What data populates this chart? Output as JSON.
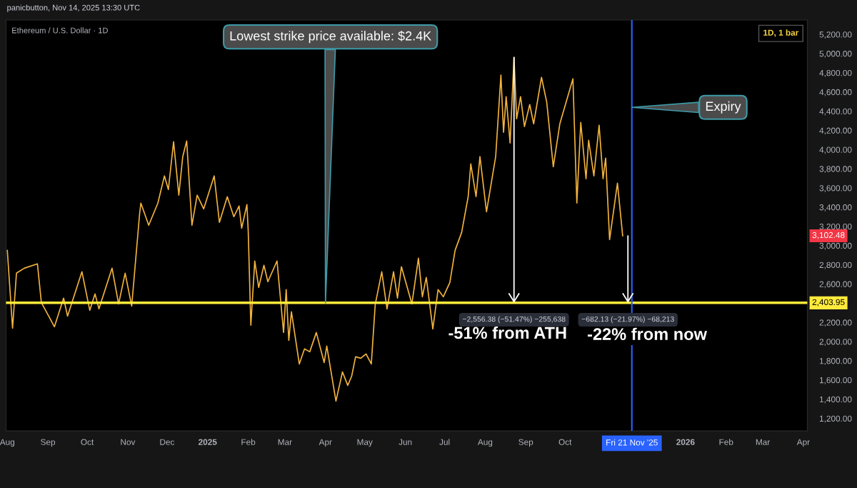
{
  "chart_data": {
    "type": "line",
    "title": "Ethereum / U.S. Dollar · 1D",
    "subtitle": "panicbutton, Nov 14, 2025 13:30 UTC",
    "x": [
      "2024-08-01",
      "2024-08-05",
      "2024-08-08",
      "2024-08-14",
      "2024-08-24",
      "2024-08-27",
      "2024-09-06",
      "2024-09-13",
      "2024-09-16",
      "2024-09-27",
      "2024-10-03",
      "2024-10-07",
      "2024-10-10",
      "2024-10-20",
      "2024-10-25",
      "2024-10-30",
      "2024-11-04",
      "2024-11-10",
      "2024-11-11",
      "2024-11-17",
      "2024-11-24",
      "2024-11-29",
      "2024-12-02",
      "2024-12-06",
      "2024-12-10",
      "2024-12-13",
      "2024-12-16",
      "2024-12-20",
      "2024-12-24",
      "2024-12-29",
      "2025-01-06",
      "2025-01-10",
      "2025-01-16",
      "2025-01-21",
      "2025-01-25",
      "2025-01-27",
      "2025-01-31",
      "2025-02-01",
      "2025-02-03",
      "2025-02-06",
      "2025-02-09",
      "2025-02-13",
      "2025-02-16",
      "2025-02-23",
      "2025-02-28",
      "2025-03-02",
      "2025-03-04",
      "2025-03-06",
      "2025-03-12",
      "2025-03-16",
      "2025-03-20",
      "2025-03-25",
      "2025-03-31",
      "2025-04-02",
      "2025-04-09",
      "2025-04-14",
      "2025-04-18",
      "2025-04-21",
      "2025-04-24",
      "2025-04-28",
      "2025-05-02",
      "2025-05-06",
      "2025-05-09",
      "2025-05-14",
      "2025-05-18",
      "2025-05-23",
      "2025-05-26",
      "2025-05-29",
      "2025-06-06",
      "2025-06-11",
      "2025-06-14",
      "2025-06-17",
      "2025-06-22",
      "2025-06-26",
      "2025-06-30",
      "2025-07-05",
      "2025-07-09",
      "2025-07-14",
      "2025-07-19",
      "2025-07-21",
      "2025-07-25",
      "2025-07-28",
      "2025-07-30",
      "2025-08-02",
      "2025-08-09",
      "2025-08-13",
      "2025-08-15",
      "2025-08-17",
      "2025-08-20",
      "2025-08-23",
      "2025-08-25",
      "2025-08-28",
      "2025-08-31",
      "2025-09-04",
      "2025-09-07",
      "2025-09-13",
      "2025-09-17",
      "2025-09-22",
      "2025-09-27",
      "2025-10-07",
      "2025-10-10",
      "2025-10-13",
      "2025-10-17",
      "2025-10-19",
      "2025-10-23",
      "2025-10-27",
      "2025-10-30",
      "2025-11-01",
      "2025-11-04",
      "2025-11-10",
      "2025-11-14"
    ],
    "series": [
      {
        "color": "#f2b33d",
        "values": [
          2950,
          2140,
          2713,
          2765,
          2810,
          2408,
          2155,
          2453,
          2266,
          2728,
          2326,
          2497,
          2341,
          2765,
          2393,
          2713,
          2370,
          3324,
          3443,
          3212,
          3443,
          3726,
          3584,
          4083,
          3525,
          3927,
          4090,
          3212,
          3525,
          3383,
          3726,
          3242,
          3510,
          3301,
          3413,
          3182,
          3428,
          3152,
          2170,
          2840,
          2564,
          2795,
          2624,
          2840,
          2095,
          2542,
          2013,
          2311,
          1767,
          1924,
          1894,
          2095,
          1782,
          1954,
          1380,
          1685,
          1544,
          1640,
          1842,
          1827,
          1872,
          1767,
          2385,
          2728,
          2341,
          2728,
          2453,
          2780,
          2393,
          2869,
          2467,
          2669,
          2132,
          2542,
          2467,
          2616,
          2951,
          3137,
          3510,
          3852,
          3510,
          3927,
          3696,
          3353,
          3927,
          4776,
          4180,
          4552,
          4068,
          4960,
          4321,
          4552,
          4240,
          4470,
          4269,
          4753,
          4493,
          3822,
          4269,
          4738,
          3443,
          4284,
          3696,
          4098,
          3726,
          4254,
          3696,
          3912,
          3063,
          3651,
          3102
        ]
      }
    ],
    "xlim": [
      "2024-07-31",
      "2026-04-04"
    ],
    "xticks": [
      {
        "value": "2024-08-01",
        "label": "Aug"
      },
      {
        "value": "2024-09-01",
        "label": "Sep"
      },
      {
        "value": "2024-10-01",
        "label": "Oct"
      },
      {
        "value": "2024-11-01",
        "label": "Nov"
      },
      {
        "value": "2024-12-01",
        "label": "Dec"
      },
      {
        "value": "2025-01-01",
        "label": "2025"
      },
      {
        "value": "2025-02-01",
        "label": "Feb"
      },
      {
        "value": "2025-03-01",
        "label": "Mar"
      },
      {
        "value": "2025-04-01",
        "label": "Apr"
      },
      {
        "value": "2025-05-01",
        "label": "May"
      },
      {
        "value": "2025-06-01",
        "label": "Jun"
      },
      {
        "value": "2025-07-01",
        "label": "Jul"
      },
      {
        "value": "2025-08-01",
        "label": "Aug"
      },
      {
        "value": "2025-09-01",
        "label": "Sep"
      },
      {
        "value": "2025-10-01",
        "label": "Oct"
      },
      {
        "value": "2026-01-01",
        "label": "2026"
      },
      {
        "value": "2026-02-01",
        "label": "Feb"
      },
      {
        "value": "2026-03-01",
        "label": "Mar"
      },
      {
        "value": "2026-04-01",
        "label": "Apr"
      }
    ],
    "ylim": [
      1070,
      5350
    ],
    "yticks": [
      {
        "value": 1200,
        "label": "1,200.00"
      },
      {
        "value": 1400,
        "label": "1,400.00"
      },
      {
        "value": 1600,
        "label": "1,600.00"
      },
      {
        "value": 1800,
        "label": "1,800.00"
      },
      {
        "value": 2000,
        "label": "2,000.00"
      },
      {
        "value": 2200,
        "label": "2,200.00"
      },
      {
        "value": 2400,
        "label": null
      },
      {
        "value": 2600,
        "label": "2,600.00"
      },
      {
        "value": 2800,
        "label": "2,800.00"
      },
      {
        "value": 3000,
        "label": "3,000.00"
      },
      {
        "value": 3200,
        "label": "3,200.00"
      },
      {
        "value": 3400,
        "label": "3,400.00"
      },
      {
        "value": 3600,
        "label": "3,600.00"
      },
      {
        "value": 3800,
        "label": "3,800.00"
      },
      {
        "value": 4000,
        "label": "4,000.00"
      },
      {
        "value": 4200,
        "label": "4,200.00"
      },
      {
        "value": 4400,
        "label": "4,400.00"
      },
      {
        "value": 4600,
        "label": "4,600.00"
      },
      {
        "value": 4800,
        "label": "4,800.00"
      },
      {
        "value": 5000,
        "label": "5,000.00"
      },
      {
        "value": 5200,
        "label": "5,200.00"
      }
    ],
    "ref_lines": [
      {
        "axis": "y",
        "value": 2403.95,
        "label": "2,403.95",
        "color": "#ffeb3b"
      },
      {
        "axis": "x",
        "value": "2025-11-21",
        "label": "Fri 21 Nov '25",
        "color": "#2962ff"
      }
    ],
    "annotations": [
      {
        "text": "Lowest strike price available: $2.4K",
        "x": "2025-04-01",
        "y": 2403.95
      },
      {
        "text": "Expiry",
        "x": "2025-11-21",
        "y": 4440
      },
      {
        "text": "−2,556.38 (−51.47%) −255,638",
        "x": "2025-08-23",
        "y": 2403.95
      },
      {
        "text": "−682.13 (−21.97%) −68,213",
        "x": "2025-11-18",
        "y": 2403.95
      },
      "-51% from ATH",
      "-22% from now",
      "1D, 1 bar",
      "3,102.48"
    ],
    "grid": false,
    "legend": false
  }
}
